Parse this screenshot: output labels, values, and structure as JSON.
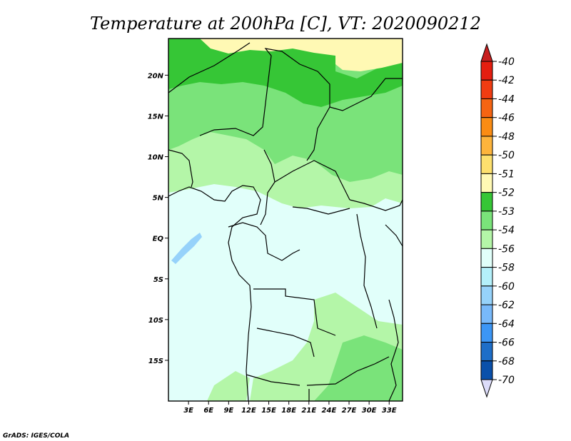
{
  "title": "Temperature at 200hPa [C], VT: 2020090212",
  "credit": "GrADS: IGES/COLA",
  "map": {
    "lon_range": [
      0,
      35
    ],
    "lat_range": [
      -20,
      24.5
    ],
    "lat_ticks": [
      {
        "value": 20,
        "label": "20N"
      },
      {
        "value": 15,
        "label": "15N"
      },
      {
        "value": 10,
        "label": "10N"
      },
      {
        "value": 5,
        "label": "5N"
      },
      {
        "value": 0,
        "label": "EQ"
      },
      {
        "value": -5,
        "label": "5S"
      },
      {
        "value": -10,
        "label": "10S"
      },
      {
        "value": -15,
        "label": "15S"
      }
    ],
    "lon_ticks": [
      {
        "value": 3,
        "label": "3E"
      },
      {
        "value": 6,
        "label": "6E"
      },
      {
        "value": 9,
        "label": "9E"
      },
      {
        "value": 12,
        "label": "12E"
      },
      {
        "value": 15,
        "label": "15E"
      },
      {
        "value": 18,
        "label": "18E"
      },
      {
        "value": 21,
        "label": "21E"
      },
      {
        "value": 24,
        "label": "24E"
      },
      {
        "value": 27,
        "label": "27E"
      },
      {
        "value": 30,
        "label": "30E"
      },
      {
        "value": 33,
        "label": "33E"
      }
    ]
  },
  "colorbar": {
    "levels": [
      {
        "label": "-40",
        "color": "#e41e10"
      },
      {
        "label": "-42",
        "color": "#f03c12"
      },
      {
        "label": "-44",
        "color": "#f56412"
      },
      {
        "label": "-46",
        "color": "#fa8c14"
      },
      {
        "label": "-48",
        "color": "#fdb43c"
      },
      {
        "label": "-50",
        "color": "#fde06e"
      },
      {
        "label": "-51",
        "color": "#fff9b4"
      },
      {
        "label": "-52",
        "color": "#36c636"
      },
      {
        "label": "-53",
        "color": "#7ae37a"
      },
      {
        "label": "-54",
        "color": "#b4f6a8"
      },
      {
        "label": "-56",
        "color": "#e1fffa"
      },
      {
        "label": "-58",
        "color": "#b4f0fa"
      },
      {
        "label": "-60",
        "color": "#96d2fa"
      },
      {
        "label": "-62",
        "color": "#78b9fa"
      },
      {
        "label": "-64",
        "color": "#3c96f5"
      },
      {
        "label": "-66",
        "color": "#1e6ec8"
      },
      {
        "label": "-68",
        "color": "#0a50aa"
      },
      {
        "label": "-70",
        "color": "#1e3c8c"
      }
    ],
    "top_color": "#c81e1e",
    "bottom_color": "#dcdcfa",
    "bottom_end_color": "#100a60"
  }
}
